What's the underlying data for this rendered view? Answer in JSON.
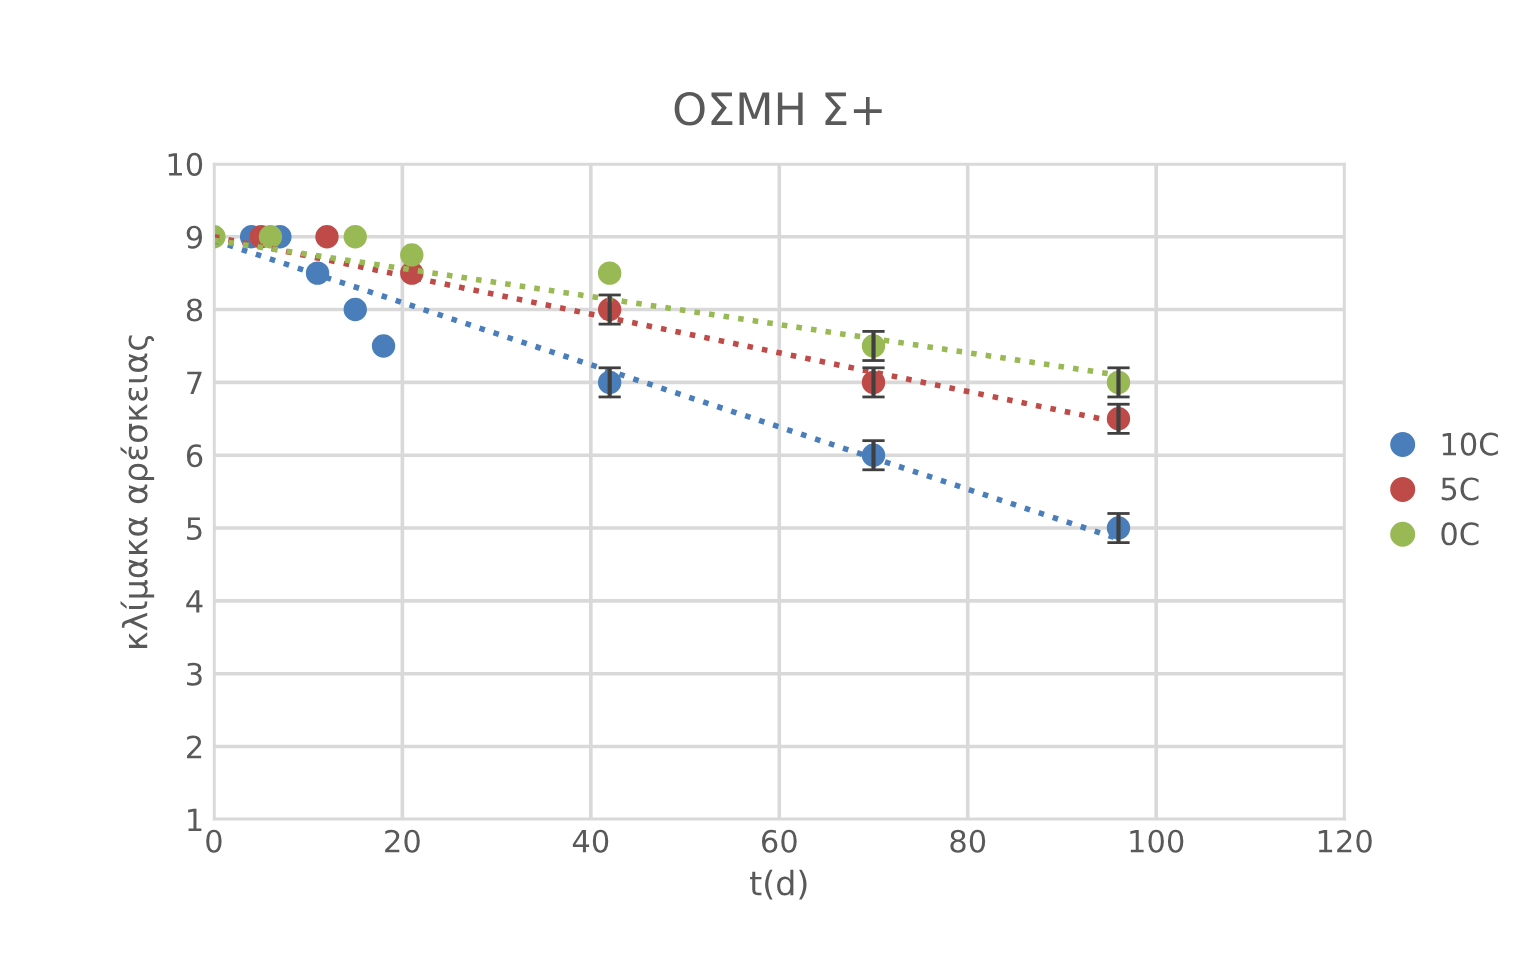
{
  "chart_data": {
    "type": "scatter",
    "title": "ΟΣΜΗ Σ+",
    "xlabel": "t(d)",
    "ylabel": "κλίμακα αρέσκειας",
    "xlim": [
      0,
      120
    ],
    "xticks": [
      0,
      20,
      40,
      60,
      80,
      100,
      120
    ],
    "ylim": [
      1,
      10
    ],
    "yticks": [
      1,
      2,
      3,
      4,
      5,
      6,
      7,
      8,
      9,
      10
    ],
    "grid": true,
    "legend": "right",
    "marker": "circle",
    "series": [
      {
        "name": "10C",
        "color": "#4a7ebb",
        "x": [
          4,
          7,
          11,
          15,
          18,
          42,
          70,
          96
        ],
        "values": [
          9,
          9,
          8.5,
          8,
          7.5,
          7,
          6,
          5
        ],
        "errors": [
          null,
          null,
          null,
          null,
          null,
          0.2,
          0.2,
          0.2
        ]
      },
      {
        "name": "5C",
        "color": "#be4b48",
        "x": [
          5,
          12,
          21,
          42,
          70,
          96
        ],
        "values": [
          9,
          9,
          8.5,
          8,
          7,
          6.5
        ],
        "errors": [
          null,
          null,
          null,
          0.2,
          0.2,
          0.2
        ]
      },
      {
        "name": "0C",
        "color": "#98b954",
        "x": [
          0,
          6,
          15,
          21,
          42,
          70,
          96
        ],
        "values": [
          9,
          9,
          9,
          8.75,
          8.5,
          7.5,
          7
        ],
        "errors": [
          null,
          null,
          null,
          null,
          null,
          0.2,
          0.2
        ]
      },
      {
        "type": "line",
        "color": "#4a7ebb",
        "line_style": "dotted",
        "marker": "none",
        "x": [
          0,
          96
        ],
        "values": [
          8.95,
          4.85
        ]
      },
      {
        "type": "line",
        "color": "#be4b48",
        "line_style": "dotted",
        "marker": "none",
        "x": [
          0,
          96
        ],
        "values": [
          9,
          6.45
        ]
      },
      {
        "type": "line",
        "color": "#98b954",
        "line_style": "dotted",
        "marker": "none",
        "x": [
          0,
          96
        ],
        "values": [
          8.95,
          7.1
        ]
      }
    ]
  }
}
